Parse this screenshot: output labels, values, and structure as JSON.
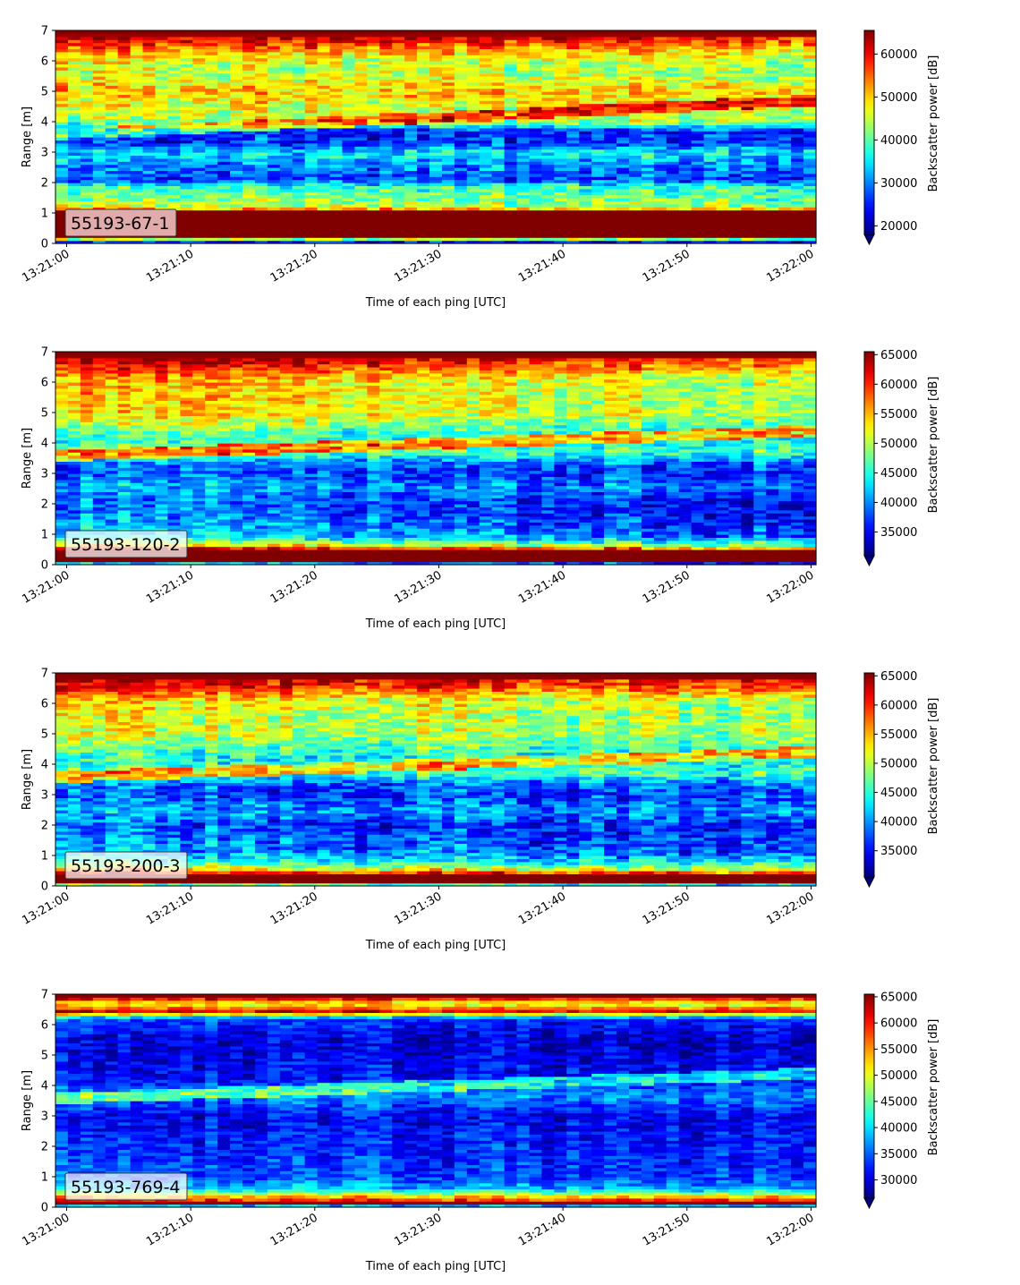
{
  "chart_data": [
    {
      "type": "heatmap",
      "panel_label": "55193-67-1",
      "xlabel": "Time of each ping [UTC]",
      "ylabel": "Range [m]",
      "ylim": [
        0,
        7
      ],
      "y_ticks": [
        "0",
        "1",
        "2",
        "3",
        "4",
        "5",
        "6",
        "7"
      ],
      "x_ticks": [
        "13:21:00",
        "13:21:10",
        "13:21:20",
        "13:21:30",
        "13:21:40",
        "13:21:50",
        "13:22:00"
      ],
      "colorbar": {
        "label": "Backscatter power [dB]",
        "range": [
          18000,
          65500
        ],
        "ticks": [
          "20000",
          "30000",
          "40000",
          "50000",
          "60000"
        ],
        "tick_values": [
          20000,
          30000,
          40000,
          50000,
          60000
        ],
        "extend": "min",
        "colormap": "jet"
      },
      "profile": [
        [
          0.0,
          0.0
        ],
        [
          0.25,
          1.0
        ],
        [
          1.05,
          1.0
        ],
        [
          1.2,
          0.62
        ],
        [
          1.6,
          0.52
        ],
        [
          1.9,
          0.45
        ],
        [
          2.1,
          0.22
        ],
        [
          2.6,
          0.28
        ],
        [
          3.0,
          0.38
        ],
        [
          3.3,
          0.18
        ],
        [
          3.7,
          0.15
        ],
        [
          4.0,
          0.55
        ],
        [
          4.4,
          0.6
        ],
        [
          5.0,
          0.72
        ],
        [
          5.6,
          0.6
        ],
        [
          6.0,
          0.64
        ],
        [
          6.4,
          0.78
        ],
        [
          6.7,
          0.95
        ],
        [
          7.0,
          1.0
        ]
      ],
      "trend": -0.12,
      "noise": 0.14,
      "layer": {
        "start": 3.6,
        "end": 4.7,
        "strength": 0.35
      }
    },
    {
      "type": "heatmap",
      "panel_label": "55193-120-2",
      "xlabel": "Time of each ping [UTC]",
      "ylabel": "Range [m]",
      "ylim": [
        0,
        7
      ],
      "y_ticks": [
        "0",
        "1",
        "2",
        "3",
        "4",
        "5",
        "6",
        "7"
      ],
      "x_ticks": [
        "13:21:00",
        "13:21:10",
        "13:21:20",
        "13:21:30",
        "13:21:40",
        "13:21:50",
        "13:22:00"
      ],
      "colorbar": {
        "label": "Backscatter power [dB]",
        "range": [
          31000,
          65500
        ],
        "ticks": [
          "35000",
          "40000",
          "45000",
          "50000",
          "55000",
          "60000",
          "65000"
        ],
        "tick_values": [
          35000,
          40000,
          45000,
          50000,
          55000,
          60000,
          65000
        ],
        "extend": "min",
        "colormap": "jet"
      },
      "profile": [
        [
          0.0,
          0.0
        ],
        [
          0.15,
          1.0
        ],
        [
          0.5,
          1.0
        ],
        [
          0.65,
          0.66
        ],
        [
          0.9,
          0.38
        ],
        [
          1.3,
          0.3
        ],
        [
          2.0,
          0.22
        ],
        [
          2.6,
          0.3
        ],
        [
          3.0,
          0.2
        ],
        [
          3.4,
          0.25
        ],
        [
          3.7,
          0.48
        ],
        [
          4.2,
          0.42
        ],
        [
          5.0,
          0.66
        ],
        [
          5.6,
          0.68
        ],
        [
          6.1,
          0.72
        ],
        [
          6.5,
          0.88
        ],
        [
          6.8,
          0.98
        ],
        [
          7.0,
          1.0
        ]
      ],
      "trend": -0.15,
      "noise": 0.13,
      "layer": {
        "start": 3.6,
        "end": 4.4,
        "strength": 0.4
      }
    },
    {
      "type": "heatmap",
      "panel_label": "55193-200-3",
      "xlabel": "Time of each ping [UTC]",
      "ylabel": "Range [m]",
      "ylim": [
        0,
        7
      ],
      "y_ticks": [
        "0",
        "1",
        "2",
        "3",
        "4",
        "5",
        "6",
        "7"
      ],
      "x_ticks": [
        "13:21:00",
        "13:21:10",
        "13:21:20",
        "13:21:30",
        "13:21:40",
        "13:21:50",
        "13:22:00"
      ],
      "colorbar": {
        "label": "Backscatter power [dB]",
        "range": [
          30500,
          65500
        ],
        "ticks": [
          "35000",
          "40000",
          "45000",
          "50000",
          "55000",
          "60000",
          "65000"
        ],
        "tick_values": [
          35000,
          40000,
          45000,
          50000,
          55000,
          60000,
          65000
        ],
        "extend": "min",
        "colormap": "jet"
      },
      "profile": [
        [
          0.0,
          0.0
        ],
        [
          0.1,
          1.0
        ],
        [
          0.4,
          1.0
        ],
        [
          0.55,
          0.7
        ],
        [
          0.8,
          0.45
        ],
        [
          1.2,
          0.3
        ],
        [
          2.0,
          0.22
        ],
        [
          2.5,
          0.32
        ],
        [
          3.0,
          0.2
        ],
        [
          3.4,
          0.25
        ],
        [
          3.7,
          0.45
        ],
        [
          4.2,
          0.4
        ],
        [
          5.0,
          0.6
        ],
        [
          5.6,
          0.62
        ],
        [
          6.1,
          0.68
        ],
        [
          6.5,
          0.88
        ],
        [
          6.8,
          0.98
        ],
        [
          7.0,
          1.0
        ]
      ],
      "trend": -0.13,
      "noise": 0.14,
      "layer": {
        "start": 3.6,
        "end": 4.4,
        "strength": 0.35
      }
    },
    {
      "type": "heatmap",
      "panel_label": "55193-769-4",
      "xlabel": "Time of each ping [UTC]",
      "ylabel": "Range [m]",
      "ylim": [
        0,
        7
      ],
      "y_ticks": [
        "0",
        "1",
        "2",
        "3",
        "4",
        "5",
        "6",
        "7"
      ],
      "x_ticks": [
        "13:21:00",
        "13:21:10",
        "13:21:20",
        "13:21:30",
        "13:21:40",
        "13:21:50",
        "13:22:00"
      ],
      "colorbar": {
        "label": "Backscatter power [dB]",
        "range": [
          26500,
          65500
        ],
        "ticks": [
          "30000",
          "35000",
          "40000",
          "45000",
          "50000",
          "55000",
          "60000",
          "65000"
        ],
        "tick_values": [
          30000,
          35000,
          40000,
          45000,
          50000,
          55000,
          60000,
          65000
        ],
        "extend": "min",
        "colormap": "jet"
      },
      "profile": [
        [
          0.0,
          0.0
        ],
        [
          0.15,
          0.98
        ],
        [
          0.35,
          0.72
        ],
        [
          0.6,
          0.34
        ],
        [
          1.0,
          0.22
        ],
        [
          2.0,
          0.17
        ],
        [
          3.0,
          0.12
        ],
        [
          3.7,
          0.28
        ],
        [
          4.2,
          0.14
        ],
        [
          5.5,
          0.1
        ],
        [
          6.2,
          0.2
        ],
        [
          6.45,
          0.92
        ],
        [
          6.7,
          0.6
        ],
        [
          6.9,
          0.98
        ],
        [
          7.0,
          1.0
        ]
      ],
      "trend": -0.05,
      "noise": 0.1,
      "layer": {
        "start": 3.6,
        "end": 4.4,
        "strength": 0.3
      }
    }
  ]
}
